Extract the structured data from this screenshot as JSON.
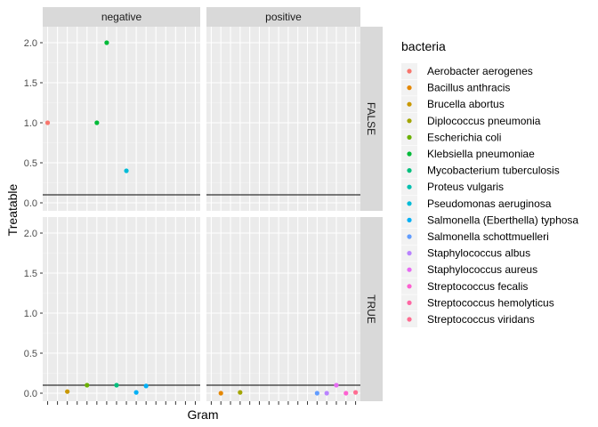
{
  "chart_data": {
    "type": "scatter",
    "xlabel": "Gram",
    "ylabel": "Treatable",
    "ylim": [
      -0.1,
      2.2
    ],
    "yticks": [
      0.0,
      0.5,
      1.0,
      1.5,
      2.0
    ],
    "ytick_labels": [
      "0.0",
      "0.5",
      "1.0",
      "1.5",
      "2.0"
    ],
    "col_facets": [
      "negative",
      "positive"
    ],
    "row_facets": [
      "FALSE",
      "TRUE"
    ],
    "hline": 0.1,
    "grid": true,
    "legend_title": "bacteria",
    "legend_position": "right",
    "series": [
      {
        "name": "Aerobacter aerogenes",
        "color": "#F8766D"
      },
      {
        "name": "Bacillus anthracis",
        "color": "#E58700"
      },
      {
        "name": "Brucella abortus",
        "color": "#C99800"
      },
      {
        "name": "Diplococcus pneumonia",
        "color": "#A3A500"
      },
      {
        "name": "Escherichia coli",
        "color": "#6BB100"
      },
      {
        "name": "Klebsiella pneumoniae",
        "color": "#00BA38"
      },
      {
        "name": "Mycobacterium tuberculosis",
        "color": "#00BF7D"
      },
      {
        "name": "Proteus vulgaris",
        "color": "#00C0AF"
      },
      {
        "name": "Pseudomonas aeruginosa",
        "color": "#00BCD8"
      },
      {
        "name": "Salmonella (Eberthella) typhosa",
        "color": "#00B0F6"
      },
      {
        "name": "Salmonella schottmuelleri",
        "color": "#619CFF"
      },
      {
        "name": "Staphylococcus albus",
        "color": "#B983FF"
      },
      {
        "name": "Staphylococcus aureus",
        "color": "#E76BF3"
      },
      {
        "name": "Streptococcus fecalis",
        "color": "#FD61D1"
      },
      {
        "name": "Streptococcus hemolyticus",
        "color": "#FF67A4"
      },
      {
        "name": "Streptococcus viridans",
        "color": "#FF6C91"
      }
    ],
    "points": [
      {
        "col": "negative",
        "row": "FALSE",
        "x": 1,
        "y": 1.0,
        "color": "#F8766D"
      },
      {
        "col": "negative",
        "row": "FALSE",
        "x": 6,
        "y": 1.0,
        "color": "#00BA38"
      },
      {
        "col": "negative",
        "row": "FALSE",
        "x": 7,
        "y": 2.0,
        "color": "#00BA38"
      },
      {
        "col": "negative",
        "row": "FALSE",
        "x": 9,
        "y": 0.4,
        "color": "#00BCD8"
      },
      {
        "col": "negative",
        "row": "TRUE",
        "x": 3,
        "y": 0.02,
        "color": "#C99800"
      },
      {
        "col": "negative",
        "row": "TRUE",
        "x": 5,
        "y": 0.1,
        "color": "#6BB100"
      },
      {
        "col": "negative",
        "row": "TRUE",
        "x": 8,
        "y": 0.1,
        "color": "#00BF7D"
      },
      {
        "col": "negative",
        "row": "TRUE",
        "x": 10,
        "y": 0.01,
        "color": "#00B0F6"
      },
      {
        "col": "negative",
        "row": "TRUE",
        "x": 11,
        "y": 0.09,
        "color": "#00B0F6"
      },
      {
        "col": "positive",
        "row": "TRUE",
        "x": 2,
        "y": 0.0,
        "color": "#E58700"
      },
      {
        "col": "positive",
        "row": "TRUE",
        "x": 4,
        "y": 0.01,
        "color": "#A3A500"
      },
      {
        "col": "positive",
        "row": "TRUE",
        "x": 12,
        "y": 0.0,
        "color": "#619CFF"
      },
      {
        "col": "positive",
        "row": "TRUE",
        "x": 13,
        "y": 0.0,
        "color": "#B983FF"
      },
      {
        "col": "positive",
        "row": "TRUE",
        "x": 14,
        "y": 0.1,
        "color": "#E76BF3"
      },
      {
        "col": "positive",
        "row": "TRUE",
        "x": 15,
        "y": 0.0,
        "color": "#FD61D1"
      },
      {
        "col": "positive",
        "row": "TRUE",
        "x": 16,
        "y": 0.01,
        "color": "#FF6C91"
      }
    ]
  }
}
